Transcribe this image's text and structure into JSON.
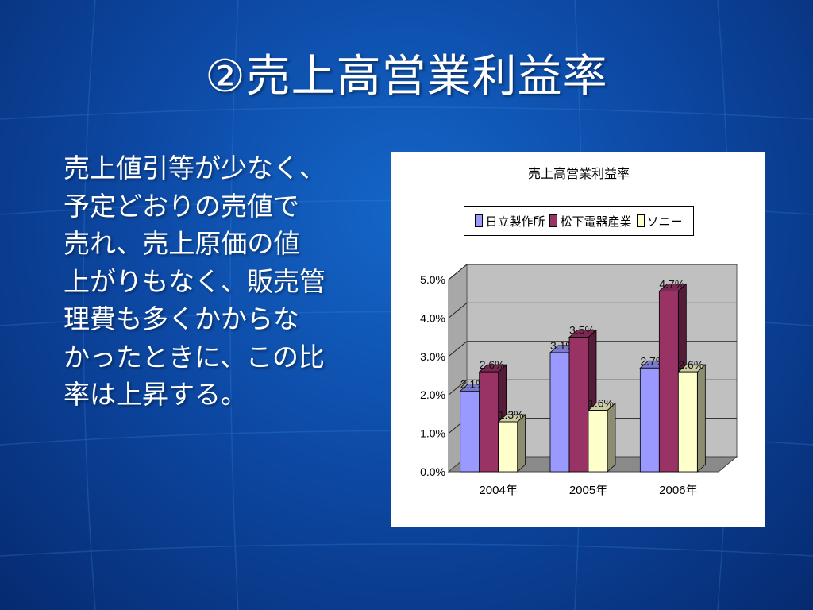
{
  "slide": {
    "title": "②売上高営業利益率",
    "body_lines": [
      "売上値引等が少なく、",
      "予定どおりの売値で",
      "売れ、売上原価の値",
      "上がりもなく、販売管",
      "理費も多くかからな",
      "かったときに、この比",
      "率は上昇する。"
    ]
  },
  "colors": {
    "background": "#0d4aa6",
    "hitachi": "#9999ff",
    "matsushita": "#993366",
    "sony": "#ffffcc"
  },
  "chart_data": {
    "type": "bar",
    "title": "売上高営業利益率",
    "categories": [
      "2004年",
      "2005年",
      "2006年"
    ],
    "series": [
      {
        "name": "日立製作所",
        "values": [
          2.1,
          3.1,
          2.7
        ],
        "labels": [
          "2.1%",
          "3.1%",
          "2.7%"
        ]
      },
      {
        "name": "松下電器産業",
        "values": [
          2.6,
          3.5,
          4.7
        ],
        "labels": [
          "2.6%",
          "3.5%",
          "4.7%"
        ]
      },
      {
        "name": "ソニー",
        "values": [
          1.3,
          1.6,
          2.6
        ],
        "labels": [
          "1.3%",
          "1.6%",
          "2.6%"
        ]
      }
    ],
    "yticks": [
      "0.0%",
      "1.0%",
      "2.0%",
      "3.0%",
      "4.0%",
      "5.0%"
    ],
    "ylim": [
      0,
      5
    ],
    "grid": true,
    "legend_position": "top",
    "three_d": true
  }
}
